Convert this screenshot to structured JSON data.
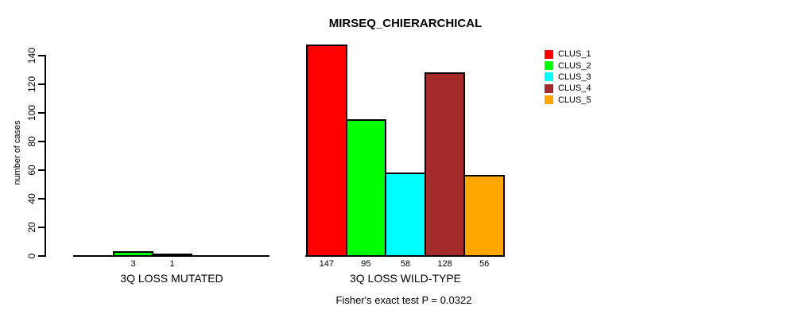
{
  "chart_data": {
    "type": "bar",
    "title": "MIRSEQ_CHIERARCHICAL",
    "ylabel": "number of cases",
    "xlabel": "",
    "yticks": [
      0,
      20,
      40,
      60,
      80,
      100,
      120,
      140
    ],
    "ylim": [
      0,
      150
    ],
    "grid": false,
    "legend_position": "top-right",
    "series": [
      {
        "name": "CLUS_1",
        "color": "#FF0000"
      },
      {
        "name": "CLUS_2",
        "color": "#00FF00"
      },
      {
        "name": "CLUS_3",
        "color": "#00FFFF"
      },
      {
        "name": "CLUS_4",
        "color": "#A52A2A"
      },
      {
        "name": "CLUS_5",
        "color": "#FFA500"
      }
    ],
    "groups": [
      {
        "label": "3Q LOSS MUTATED",
        "values": [
          0,
          3,
          1,
          0,
          0
        ],
        "value_labels": [
          "",
          "3",
          "1",
          "",
          ""
        ]
      },
      {
        "label": "3Q LOSS WILD-TYPE",
        "values": [
          147,
          95,
          58,
          128,
          56
        ],
        "value_labels": [
          "147",
          "95",
          "58",
          "128",
          "56"
        ]
      }
    ],
    "annotation": "Fisher's exact test P = 0.0322"
  }
}
